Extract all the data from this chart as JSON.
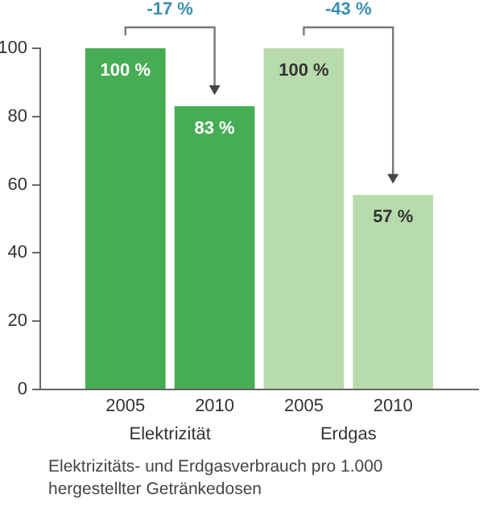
{
  "chart_data": {
    "type": "bar",
    "categories": [
      "2005",
      "2010",
      "2005",
      "2010"
    ],
    "values": [
      100,
      83,
      100,
      57
    ],
    "colors": [
      "#47ad55",
      "#47ad55",
      "#b8dbac",
      "#b8dbac"
    ],
    "value_labels": [
      "100 %",
      "83 %",
      "100 %",
      "57 %"
    ],
    "ylim": [
      0,
      100
    ],
    "yticks": [
      0,
      20,
      40,
      60,
      80,
      100
    ],
    "grid": false,
    "legend": false,
    "annotations": [
      "-17 %",
      "-43 %",
      "Elektrizität",
      "Erdgas",
      "Elektrizitäts- und Erdgasverbrauch pro 1.000 hergestellter Getränkedosen"
    ]
  }
}
